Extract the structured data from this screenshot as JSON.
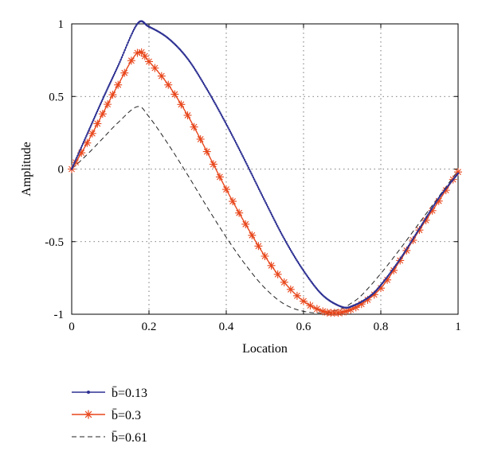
{
  "chart_data": {
    "type": "line",
    "title": "",
    "xlabel": "Location",
    "ylabel": "Amplitude",
    "xlim": [
      0,
      1
    ],
    "ylim": [
      -1,
      1
    ],
    "xticks": [
      0,
      0.2,
      0.4,
      0.6,
      0.8,
      1
    ],
    "xtick_labels": [
      "0",
      "0.2",
      "0.4",
      "0.6",
      "0.8",
      "1"
    ],
    "yticks": [
      -1,
      -0.5,
      0,
      0.5,
      1
    ],
    "ytick_labels": [
      "-1",
      "-0.5",
      "0",
      "0.5",
      "1"
    ],
    "grid": true,
    "legend_position": "below",
    "series": [
      {
        "name": "b̄=0.13",
        "color": "#2e3192",
        "style": "solid-dot",
        "x": [
          0,
          0.04,
          0.08,
          0.12,
          0.17,
          0.2,
          0.25,
          0.3,
          0.35,
          0.4,
          0.45,
          0.5,
          0.55,
          0.6,
          0.65,
          0.7,
          0.73,
          0.77,
          0.8,
          0.85,
          0.9,
          0.95,
          1
        ],
        "y": [
          0,
          0.24,
          0.48,
          0.71,
          1.0,
          0.98,
          0.9,
          0.76,
          0.55,
          0.31,
          0.05,
          -0.22,
          -0.48,
          -0.7,
          -0.87,
          -0.95,
          -0.94,
          -0.88,
          -0.8,
          -0.62,
          -0.41,
          -0.2,
          -0.03
        ]
      },
      {
        "name": "b̄=0.3",
        "color": "#e8471c",
        "style": "solid-star",
        "x": [
          0,
          0.04,
          0.08,
          0.12,
          0.17,
          0.2,
          0.25,
          0.3,
          0.35,
          0.4,
          0.45,
          0.5,
          0.55,
          0.6,
          0.65,
          0.68,
          0.71,
          0.75,
          0.8,
          0.85,
          0.9,
          0.95,
          1
        ],
        "y": [
          0,
          0.18,
          0.38,
          0.58,
          0.8,
          0.74,
          0.58,
          0.37,
          0.12,
          -0.14,
          -0.38,
          -0.6,
          -0.78,
          -0.91,
          -0.98,
          -0.99,
          -0.98,
          -0.93,
          -0.82,
          -0.63,
          -0.42,
          -0.22,
          -0.02
        ]
      },
      {
        "name": "b̄=0.61",
        "color": "#222222",
        "style": "dashed",
        "x": [
          0,
          0.04,
          0.08,
          0.12,
          0.17,
          0.2,
          0.25,
          0.3,
          0.35,
          0.4,
          0.45,
          0.5,
          0.55,
          0.6,
          0.65,
          0.7,
          0.72,
          0.75,
          0.8,
          0.85,
          0.9,
          0.95,
          1
        ],
        "y": [
          0,
          0.1,
          0.21,
          0.32,
          0.43,
          0.36,
          0.17,
          -0.04,
          -0.26,
          -0.47,
          -0.66,
          -0.82,
          -0.93,
          -0.98,
          -0.99,
          -0.96,
          -0.93,
          -0.87,
          -0.72,
          -0.55,
          -0.37,
          -0.19,
          -0.01
        ]
      }
    ]
  }
}
